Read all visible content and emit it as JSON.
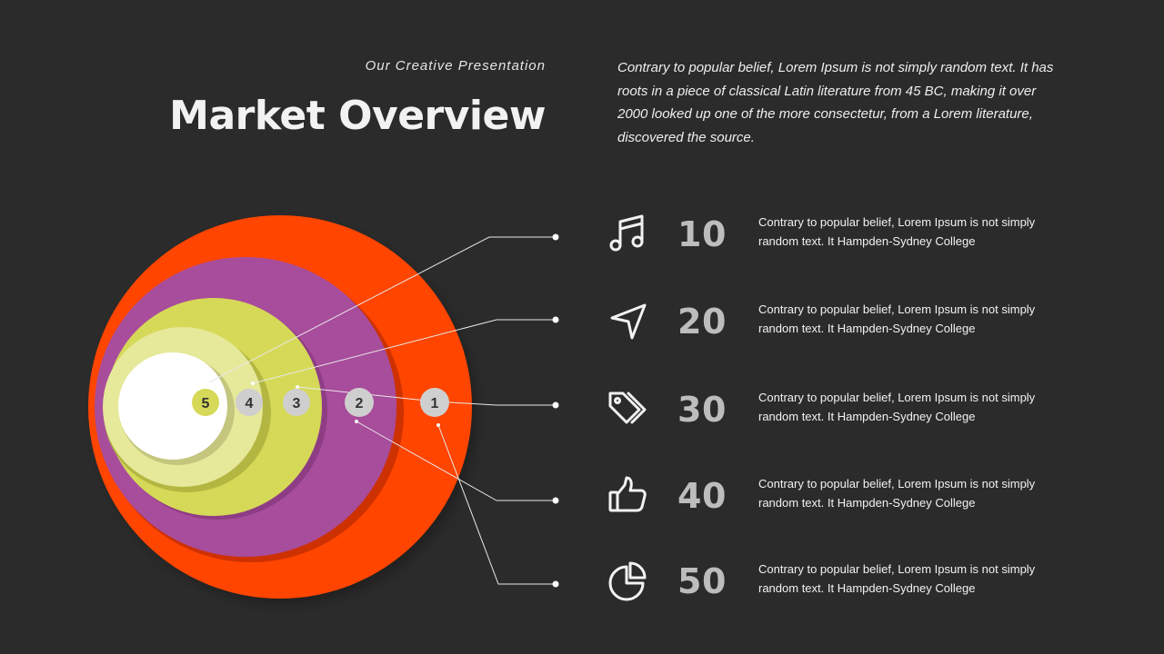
{
  "header": {
    "subtitle": "Our Creative Presentation",
    "title": "Market Overview",
    "intro": "Contrary to popular belief, Lorem Ipsum is not simply random text. It has roots in a piece of classical Latin literature from 45 BC, making it over 2000 looked up one of the more consectetur, from a Lorem literature, discovered the source."
  },
  "circles": [
    {
      "label": "1",
      "color": "#ff4500"
    },
    {
      "label": "2",
      "color": "#a84c9c"
    },
    {
      "label": "3",
      "color": "#d5d957"
    },
    {
      "label": "4",
      "color": "#e6e89a"
    },
    {
      "label": "5",
      "color": "#ffffff"
    }
  ],
  "colors": {
    "background": "#2b2b2b",
    "marker_gray": "#cfcfcf",
    "marker_highlight": "#d5d957",
    "value_text": "#bdbdbd"
  },
  "items": [
    {
      "icon": "music-note-icon",
      "value": "10",
      "text": "Contrary to popular belief, Lorem Ipsum is not simply random text. It Hampden-Sydney College"
    },
    {
      "icon": "navigation-arrow-icon",
      "value": "20",
      "text": "Contrary to popular belief, Lorem Ipsum is not simply random text. It Hampden-Sydney College"
    },
    {
      "icon": "tags-icon",
      "value": "30",
      "text": "Contrary to popular belief, Lorem Ipsum is not simply random text. It Hampden-Sydney College"
    },
    {
      "icon": "thumbs-up-icon",
      "value": "40",
      "text": "Contrary to popular belief, Lorem Ipsum is not simply random text. It Hampden-Sydney College"
    },
    {
      "icon": "pie-chart-icon",
      "value": "50",
      "text": "Contrary to popular belief, Lorem Ipsum is not simply random text. It Hampden-Sydney College"
    }
  ]
}
